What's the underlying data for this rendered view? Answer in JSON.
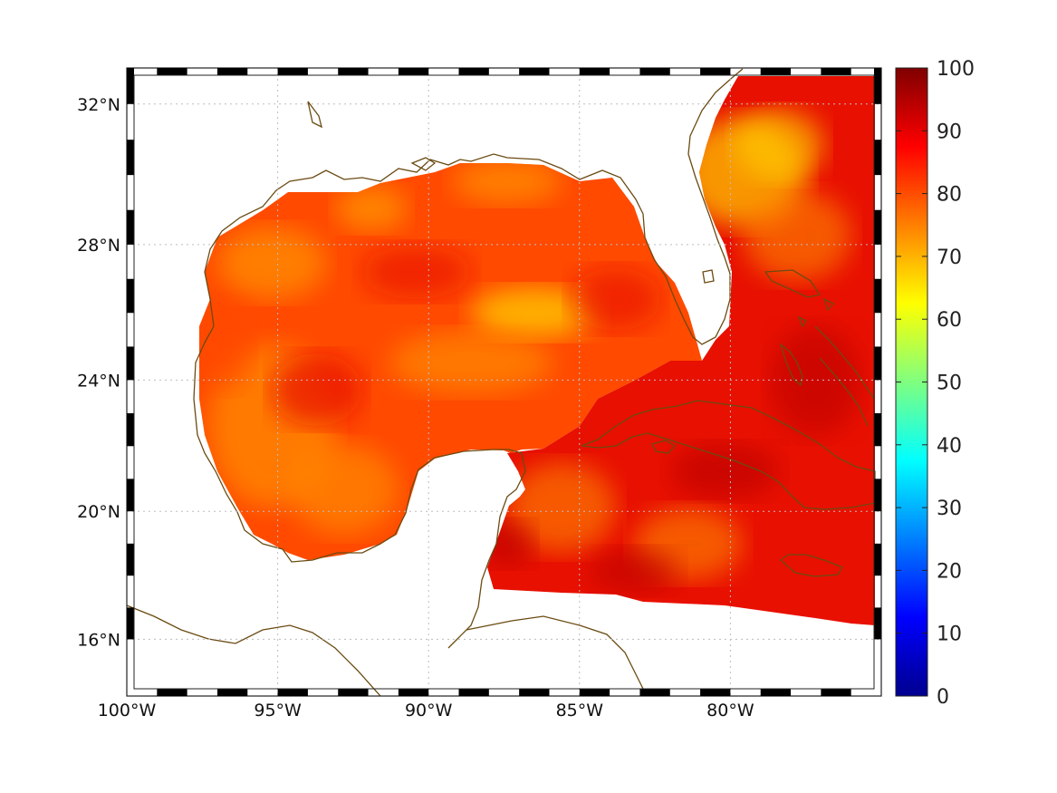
{
  "map": {
    "projection": "mercator",
    "variable_range": [
      0,
      100
    ],
    "lon_range": [
      -100,
      -75
    ],
    "lat_range": [
      14.2,
      33
    ],
    "lon_ticks": [
      {
        "value": -100,
        "label": "100°W"
      },
      {
        "value": -95,
        "label": "95°W"
      },
      {
        "value": -90,
        "label": "90°W"
      },
      {
        "value": -85,
        "label": "85°W"
      },
      {
        "value": -80,
        "label": "80°W"
      }
    ],
    "lat_ticks": [
      {
        "value": 32,
        "label": "32°N"
      },
      {
        "value": 28,
        "label": "28°N"
      },
      {
        "value": 24,
        "label": "24°N"
      },
      {
        "value": 20,
        "label": "20°N"
      },
      {
        "value": 16,
        "label": "16°N"
      }
    ],
    "colorbar": {
      "colormap": "jet",
      "ticks": [
        "0",
        "10",
        "20",
        "30",
        "40",
        "50",
        "60",
        "70",
        "80",
        "90",
        "100"
      ]
    },
    "colors": {
      "coastline": "#6b4b12",
      "grid": "#bdbdbd",
      "field_low": "#ff8a00",
      "field_mid": "#ff4a00",
      "field_high": "#e81000",
      "field_peak": "#b80000",
      "field_min": "#ffd000"
    }
  }
}
